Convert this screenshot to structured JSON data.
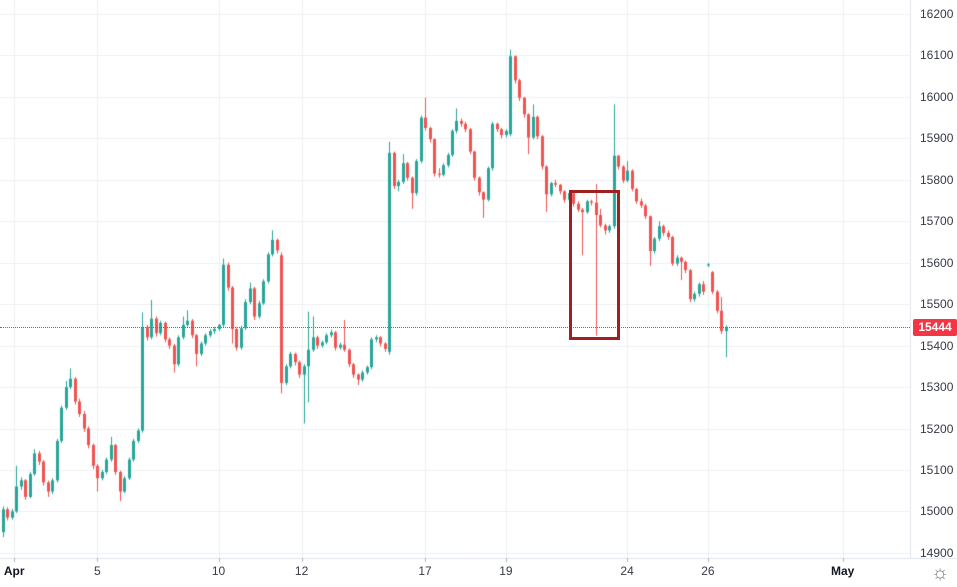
{
  "colors": {
    "up": "#26a69a",
    "down": "#ef5350",
    "grid": "#edeff3",
    "axis_text": "#363a45",
    "month_text": "#131722",
    "separator": "#e0e3eb",
    "tick": "#b2b5be",
    "price_line": "#f23645",
    "price_label_bg": "#f23645",
    "price_label_text": "#ffffff",
    "annotation": "#a02020",
    "background": "#ffffff",
    "icon": "#787b86"
  },
  "icons": {
    "settings_glyph": "☼"
  },
  "chart_data": {
    "type": "candlestick",
    "title": "",
    "grid": true,
    "y_axis": {
      "min": 14900,
      "max": 16200,
      "tick_step": 100,
      "labels": [
        "16200",
        "16100",
        "16000",
        "15900",
        "15800",
        "15700",
        "15600",
        "15500",
        "15400",
        "15300",
        "15200",
        "15100",
        "15000",
        "14900"
      ]
    },
    "x_axis": {
      "labels": [
        {
          "text": "Apr",
          "index": 2.5,
          "month": true
        },
        {
          "text": "5",
          "index": 21,
          "month": false
        },
        {
          "text": "10",
          "index": 48,
          "month": false
        },
        {
          "text": "12",
          "index": 66.5,
          "month": false
        },
        {
          "text": "17",
          "index": 94,
          "month": false
        },
        {
          "text": "19",
          "index": 112,
          "month": false
        },
        {
          "text": "24",
          "index": 139,
          "month": false
        },
        {
          "text": "26",
          "index": 157,
          "month": false
        },
        {
          "text": "May",
          "index": 187,
          "month": true
        }
      ]
    },
    "last_price": {
      "label": "15444",
      "value": 15444
    },
    "annotations": {
      "rectangle": {
        "from_index": 126,
        "to_index": 137.3,
        "price_top": 15775,
        "price_bottom": 15412
      }
    },
    "candles": [
      [
        14950,
        15012,
        14938,
        15005
      ],
      [
        15005,
        15010,
        14978,
        14985
      ],
      [
        14985,
        15006,
        14980,
        15000
      ],
      [
        15000,
        15110,
        14996,
        15060
      ],
      [
        15060,
        15082,
        15052,
        15075
      ],
      [
        15075,
        15078,
        15028,
        15035
      ],
      [
        15035,
        15095,
        15032,
        15090
      ],
      [
        15090,
        15150,
        15086,
        15140
      ],
      [
        15140,
        15146,
        15112,
        15120
      ],
      [
        15120,
        15124,
        15062,
        15070
      ],
      [
        15070,
        15074,
        15035,
        15048
      ],
      [
        15048,
        15080,
        15042,
        15075
      ],
      [
        15075,
        15175,
        15070,
        15170
      ],
      [
        15170,
        15255,
        15165,
        15250
      ],
      [
        15250,
        15315,
        15245,
        15300
      ],
      [
        15300,
        15345,
        15295,
        15320
      ],
      [
        15320,
        15324,
        15258,
        15265
      ],
      [
        15265,
        15272,
        15228,
        15235
      ],
      [
        15235,
        15242,
        15192,
        15200
      ],
      [
        15200,
        15205,
        15152,
        15160
      ],
      [
        15160,
        15164,
        15102,
        15110
      ],
      [
        15110,
        15114,
        15048,
        15080
      ],
      [
        15080,
        15100,
        15075,
        15095
      ],
      [
        15095,
        15130,
        15090,
        15125
      ],
      [
        15125,
        15180,
        15120,
        15160
      ],
      [
        15160,
        15163,
        15088,
        15095
      ],
      [
        15095,
        15098,
        15025,
        15048
      ],
      [
        15048,
        15085,
        15044,
        15080
      ],
      [
        15080,
        15130,
        15076,
        15125
      ],
      [
        15125,
        15175,
        15120,
        15170
      ],
      [
        15170,
        15200,
        15165,
        15195
      ],
      [
        15195,
        15480,
        15190,
        15445
      ],
      [
        15445,
        15450,
        15412,
        15420
      ],
      [
        15420,
        15510,
        15415,
        15465
      ],
      [
        15465,
        15470,
        15422,
        15430
      ],
      [
        15430,
        15460,
        15425,
        15455
      ],
      [
        15455,
        15458,
        15408,
        15415
      ],
      [
        15415,
        15420,
        15392,
        15400
      ],
      [
        15400,
        15404,
        15335,
        15355
      ],
      [
        15355,
        15425,
        15350,
        15420
      ],
      [
        15420,
        15470,
        15415,
        15450
      ],
      [
        15450,
        15485,
        15445,
        15460
      ],
      [
        15460,
        15464,
        15418,
        15425
      ],
      [
        15425,
        15428,
        15350,
        15380
      ],
      [
        15380,
        15410,
        15375,
        15405
      ],
      [
        15405,
        15430,
        15400,
        15425
      ],
      [
        15425,
        15440,
        15420,
        15435
      ],
      [
        15435,
        15445,
        15428,
        15440
      ],
      [
        15440,
        15452,
        15435,
        15450
      ],
      [
        15450,
        15610,
        15445,
        15595
      ],
      [
        15595,
        15600,
        15532,
        15540
      ],
      [
        15540,
        15544,
        15405,
        15440
      ],
      [
        15440,
        15444,
        15388,
        15395
      ],
      [
        15395,
        15448,
        15390,
        15442
      ],
      [
        15442,
        15512,
        15438,
        15505
      ],
      [
        15505,
        15552,
        15500,
        15538
      ],
      [
        15538,
        15542,
        15462,
        15470
      ],
      [
        15470,
        15508,
        15465,
        15502
      ],
      [
        15502,
        15560,
        15498,
        15555
      ],
      [
        15555,
        15625,
        15550,
        15620
      ],
      [
        15620,
        15678,
        15615,
        15655
      ],
      [
        15655,
        15658,
        15622,
        15630
      ],
      [
        15618,
        15625,
        15285,
        15310
      ],
      [
        15310,
        15355,
        15305,
        15350
      ],
      [
        15350,
        15385,
        15345,
        15380
      ],
      [
        15380,
        15383,
        15352,
        15360
      ],
      [
        15360,
        15364,
        15322,
        15330
      ],
      [
        15330,
        15355,
        15212,
        15350
      ],
      [
        15350,
        15482,
        15263,
        15390
      ],
      [
        15390,
        15470,
        15385,
        15420
      ],
      [
        15420,
        15424,
        15392,
        15400
      ],
      [
        15400,
        15412,
        15395,
        15408
      ],
      [
        15408,
        15430,
        15403,
        15425
      ],
      [
        15425,
        15438,
        15420,
        15432
      ],
      [
        15432,
        15435,
        15388,
        15395
      ],
      [
        15395,
        15407,
        15390,
        15402
      ],
      [
        15402,
        15462,
        15385,
        15390
      ],
      [
        15390,
        15393,
        15348,
        15355
      ],
      [
        15355,
        15358,
        15322,
        15330
      ],
      [
        15330,
        15333,
        15305,
        15318
      ],
      [
        15318,
        15340,
        15313,
        15335
      ],
      [
        15335,
        15352,
        15330,
        15348
      ],
      [
        15348,
        15420,
        15343,
        15415
      ],
      [
        15415,
        15425,
        15408,
        15420
      ],
      [
        15420,
        15423,
        15398,
        15405
      ],
      [
        15405,
        15408,
        15385,
        15392
      ],
      [
        15385,
        15892,
        15378,
        15865
      ],
      [
        15865,
        15868,
        15778,
        15785
      ],
      [
        15785,
        15800,
        15772,
        15795
      ],
      [
        15795,
        15862,
        15790,
        15840
      ],
      [
        15840,
        15843,
        15798,
        15805
      ],
      [
        15805,
        15808,
        15730,
        15768
      ],
      [
        15768,
        15850,
        15762,
        15845
      ],
      [
        15845,
        15955,
        15840,
        15950
      ],
      [
        15950,
        15998,
        15918,
        15925
      ],
      [
        15925,
        15928,
        15890,
        15898
      ],
      [
        15898,
        15900,
        15808,
        15815
      ],
      [
        15815,
        15828,
        15805,
        15812
      ],
      [
        15812,
        15840,
        15808,
        15835
      ],
      [
        15835,
        15865,
        15830,
        15860
      ],
      [
        15860,
        15922,
        15855,
        15918
      ],
      [
        15918,
        15972,
        15912,
        15942
      ],
      [
        15942,
        15948,
        15928,
        15935
      ],
      [
        15935,
        15940,
        15915,
        15922
      ],
      [
        15922,
        15925,
        15862,
        15868
      ],
      [
        15868,
        15870,
        15798,
        15805
      ],
      [
        15805,
        15808,
        15762,
        15770
      ],
      [
        15770,
        15772,
        15708,
        15752
      ],
      [
        15752,
        15832,
        15748,
        15828
      ],
      [
        15828,
        15940,
        15822,
        15935
      ],
      [
        15935,
        15938,
        15915,
        15922
      ],
      [
        15922,
        15925,
        15900,
        15908
      ],
      [
        15908,
        15922,
        15902,
        15918
      ],
      [
        15910,
        16114,
        15905,
        16098
      ],
      [
        16098,
        16100,
        16032,
        16040
      ],
      [
        16040,
        16044,
        15990,
        15998
      ],
      [
        15998,
        16000,
        15950,
        15958
      ],
      [
        15958,
        15960,
        15862,
        15902
      ],
      [
        15902,
        15982,
        15898,
        15952
      ],
      [
        15952,
        15955,
        15898,
        15905
      ],
      [
        15905,
        15908,
        15825,
        15832
      ],
      [
        15832,
        15835,
        15722,
        15765
      ],
      [
        15765,
        15795,
        15760,
        15792
      ],
      [
        15792,
        15800,
        15782,
        15788
      ],
      [
        15788,
        15790,
        15765,
        15772
      ],
      [
        15772,
        15775,
        15745,
        15752
      ],
      [
        15752,
        15772,
        15748,
        15768
      ],
      [
        15768,
        15770,
        15735,
        15742
      ],
      [
        15742,
        15748,
        15722,
        15728
      ],
      [
        15728,
        15732,
        15618,
        15722
      ],
      [
        15722,
        15752,
        15718,
        15748
      ],
      [
        15748,
        15752,
        15738,
        15745
      ],
      [
        15745,
        15790,
        15424,
        15715
      ],
      [
        15715,
        15730,
        15685,
        15690
      ],
      [
        15690,
        15694,
        15668,
        15678
      ],
      [
        15678,
        15692,
        15672,
        15688
      ],
      [
        15688,
        15982,
        15682,
        15858
      ],
      [
        15858,
        15860,
        15825,
        15832
      ],
      [
        15832,
        15835,
        15792,
        15798
      ],
      [
        15798,
        15845,
        15794,
        15822
      ],
      [
        15822,
        15825,
        15772,
        15778
      ],
      [
        15778,
        15780,
        15742,
        15748
      ],
      [
        15748,
        15755,
        15732,
        15738
      ],
      [
        15738,
        15742,
        15705,
        15712
      ],
      [
        15712,
        15714,
        15592,
        15628
      ],
      [
        15628,
        15662,
        15622,
        15658
      ],
      [
        15658,
        15700,
        15652,
        15688
      ],
      [
        15688,
        15692,
        15665,
        15672
      ],
      [
        15672,
        15678,
        15655,
        15662
      ],
      [
        15662,
        15665,
        15592,
        15598
      ],
      [
        15598,
        15618,
        15592,
        15612
      ],
      [
        15612,
        15615,
        15558,
        15602
      ],
      [
        15602,
        15605,
        15575,
        15582
      ],
      [
        15582,
        15585,
        15505,
        15512
      ],
      [
        15512,
        15530,
        15506,
        15525
      ],
      [
        15525,
        15552,
        15518,
        15548
      ],
      [
        15548,
        15556,
        15522,
        15530
      ],
      [
        15593,
        15599,
        15590,
        15596
      ],
      [
        15577,
        15580,
        15524,
        15530
      ],
      [
        15530,
        15534,
        15478,
        15484
      ],
      [
        15484,
        15517,
        15428,
        15435
      ],
      [
        15435,
        15449,
        15372,
        15444
      ]
    ]
  }
}
